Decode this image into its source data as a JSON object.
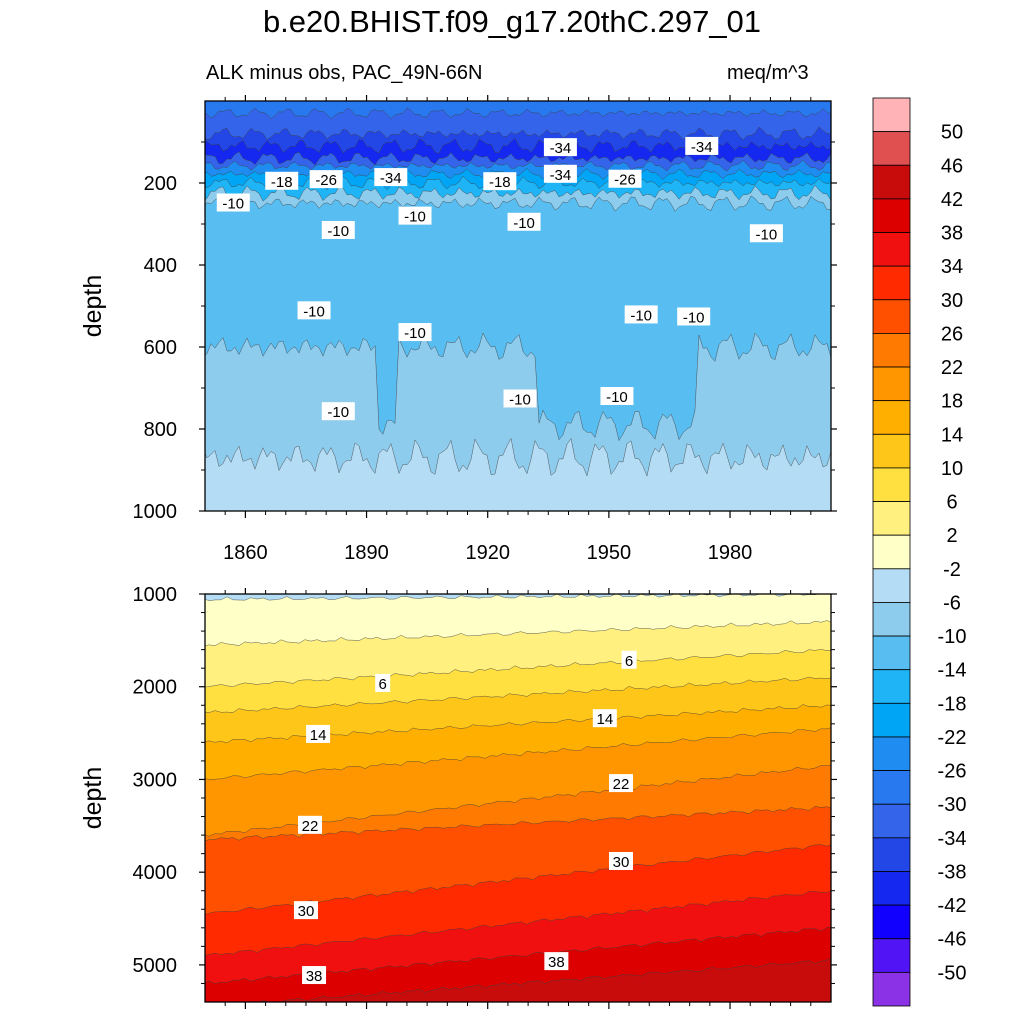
{
  "figure": {
    "title": "b.e20.BHIST.f09_g17.20thC.297_01",
    "left_subtitle": "ALK minus obs, PAC_49N-66N",
    "right_subtitle": "meq/m^3"
  },
  "chart_data": [
    {
      "type": "heatmap",
      "panel": "upper",
      "ylabel": "depth",
      "xlim": [
        1850,
        2005
      ],
      "ylim": [
        1000,
        0
      ],
      "x_ticks": [
        1860,
        1890,
        1920,
        1950,
        1980
      ],
      "y_ticks": [
        200,
        400,
        600,
        800,
        1000
      ],
      "contour_labels": [
        {
          "text": "-34",
          "x": 1938,
          "y": 115
        },
        {
          "text": "-34",
          "x": 1973,
          "y": 112
        },
        {
          "text": "-34",
          "x": 1896,
          "y": 188
        },
        {
          "text": "-34",
          "x": 1938,
          "y": 180
        },
        {
          "text": "-18",
          "x": 1869,
          "y": 197
        },
        {
          "text": "-26",
          "x": 1880,
          "y": 193
        },
        {
          "text": "-18",
          "x": 1923,
          "y": 198
        },
        {
          "text": "-26",
          "x": 1954,
          "y": 192
        },
        {
          "text": "-10",
          "x": 1857,
          "y": 250
        },
        {
          "text": "-10",
          "x": 1902,
          "y": 282
        },
        {
          "text": "-10",
          "x": 1883,
          "y": 317
        },
        {
          "text": "-10",
          "x": 1929,
          "y": 297
        },
        {
          "text": "-10",
          "x": 1989,
          "y": 325
        },
        {
          "text": "-10",
          "x": 1877,
          "y": 513
        },
        {
          "text": "-10",
          "x": 1902,
          "y": 566
        },
        {
          "text": "-10",
          "x": 1958,
          "y": 523
        },
        {
          "text": "-10",
          "x": 1971,
          "y": 528
        },
        {
          "text": "-10",
          "x": 1883,
          "y": 759
        },
        {
          "text": "-10",
          "x": 1928,
          "y": 728
        },
        {
          "text": "-10",
          "x": 1952,
          "y": 722
        }
      ]
    },
    {
      "type": "heatmap",
      "panel": "lower",
      "ylabel": "depth",
      "xlim": [
        1850,
        2005
      ],
      "ylim": [
        5400,
        1000
      ],
      "y_ticks": [
        1000,
        2000,
        3000,
        4000,
        5000
      ],
      "contour_labels": [
        {
          "text": "6",
          "x": 1955,
          "y": 1720
        },
        {
          "text": "6",
          "x": 1894,
          "y": 1970
        },
        {
          "text": "14",
          "x": 1878,
          "y": 2520
        },
        {
          "text": "14",
          "x": 1949,
          "y": 2350
        },
        {
          "text": "22",
          "x": 1876,
          "y": 3500
        },
        {
          "text": "22",
          "x": 1953,
          "y": 3050
        },
        {
          "text": "30",
          "x": 1875,
          "y": 4420
        },
        {
          "text": "30",
          "x": 1953,
          "y": 3890
        },
        {
          "text": "38",
          "x": 1877,
          "y": 5120
        },
        {
          "text": "38",
          "x": 1937,
          "y": 4970
        }
      ]
    }
  ],
  "colorbar": {
    "labels": [
      "50",
      "46",
      "42",
      "38",
      "34",
      "30",
      "26",
      "22",
      "18",
      "14",
      "10",
      "6",
      "2",
      "-2",
      "-6",
      "-10",
      "-14",
      "-18",
      "-22",
      "-26",
      "-30",
      "-34",
      "-38",
      "-42",
      "-46",
      "-50"
    ],
    "colors": [
      "#FFB3B6",
      "#E05050",
      "#C80C0C",
      "#DC0000",
      "#F01010",
      "#FF2A00",
      "#FF5000",
      "#FF7A00",
      "#FF9600",
      "#FFAF00",
      "#FFC61A",
      "#FFE040",
      "#FFF080",
      "#FFFFC8",
      "#B4DCF4",
      "#8ECCEE",
      "#58BDF0",
      "#1EB4F5",
      "#00A5F5",
      "#1E8CF0",
      "#2879F0",
      "#3364EA",
      "#2346E6",
      "#1428F0",
      "#1200FF",
      "#5014F5",
      "#8C32E6"
    ]
  }
}
